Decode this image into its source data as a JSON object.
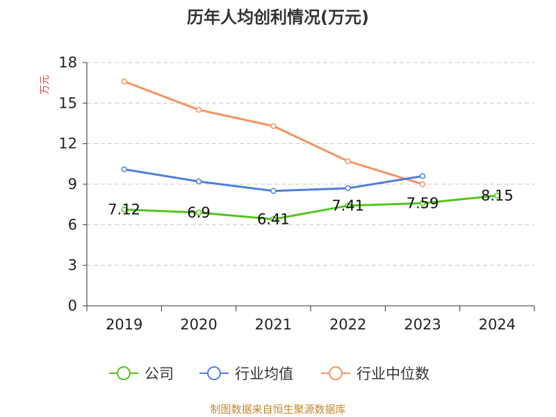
{
  "chart_data": {
    "type": "line",
    "title": "历年人均创利情况(万元)",
    "ylabel": "万元",
    "xlabel": "",
    "categories": [
      "2019",
      "2020",
      "2021",
      "2022",
      "2023",
      "2024"
    ],
    "ylim": [
      0,
      18
    ],
    "yticks": [
      0,
      3,
      6,
      9,
      12,
      15,
      18
    ],
    "grid": true,
    "legend_position": "bottom",
    "series": [
      {
        "name": "公司",
        "color": "#52c41a",
        "values": [
          7.12,
          6.9,
          6.41,
          7.41,
          7.59,
          8.15
        ],
        "labels": [
          "7.12",
          "6.9",
          "6.41",
          "7.41",
          "7.59",
          "8.15"
        ]
      },
      {
        "name": "行业均值",
        "color": "#4e7fd8",
        "values": [
          10.1,
          9.2,
          8.5,
          8.7,
          9.6,
          null
        ]
      },
      {
        "name": "行业中位数",
        "color": "#f59260",
        "values": [
          16.6,
          14.5,
          13.3,
          10.7,
          9.0,
          null
        ]
      }
    ],
    "source": "制图数据来自恒生聚源数据库"
  }
}
